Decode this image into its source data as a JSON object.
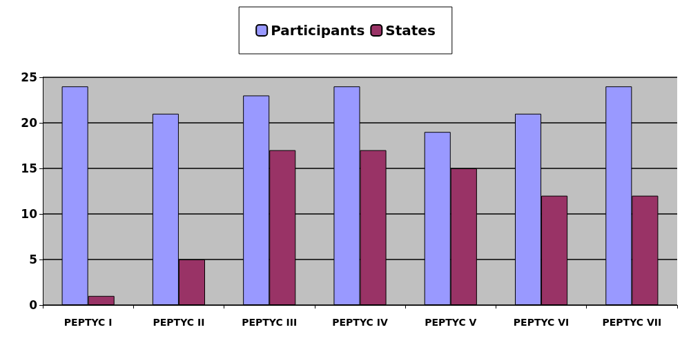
{
  "chart_data": {
    "type": "bar",
    "categories": [
      "PEPTYC I",
      "PEPTYC II",
      "PEPTYC III",
      "PEPTYC IV",
      "PEPTYC V",
      "PEPTYC VI",
      "PEPTYC VII"
    ],
    "series": [
      {
        "name": "Participants",
        "color": "#9999ff",
        "values": [
          24,
          21,
          23,
          24,
          19,
          21,
          24
        ]
      },
      {
        "name": "States",
        "color": "#993366",
        "values": [
          1,
          5,
          17,
          17,
          15,
          12,
          12
        ]
      }
    ],
    "ylim": [
      0,
      25
    ],
    "yticks": [
      0,
      5,
      10,
      15,
      20,
      25
    ],
    "grid": "y",
    "legend": "top"
  }
}
